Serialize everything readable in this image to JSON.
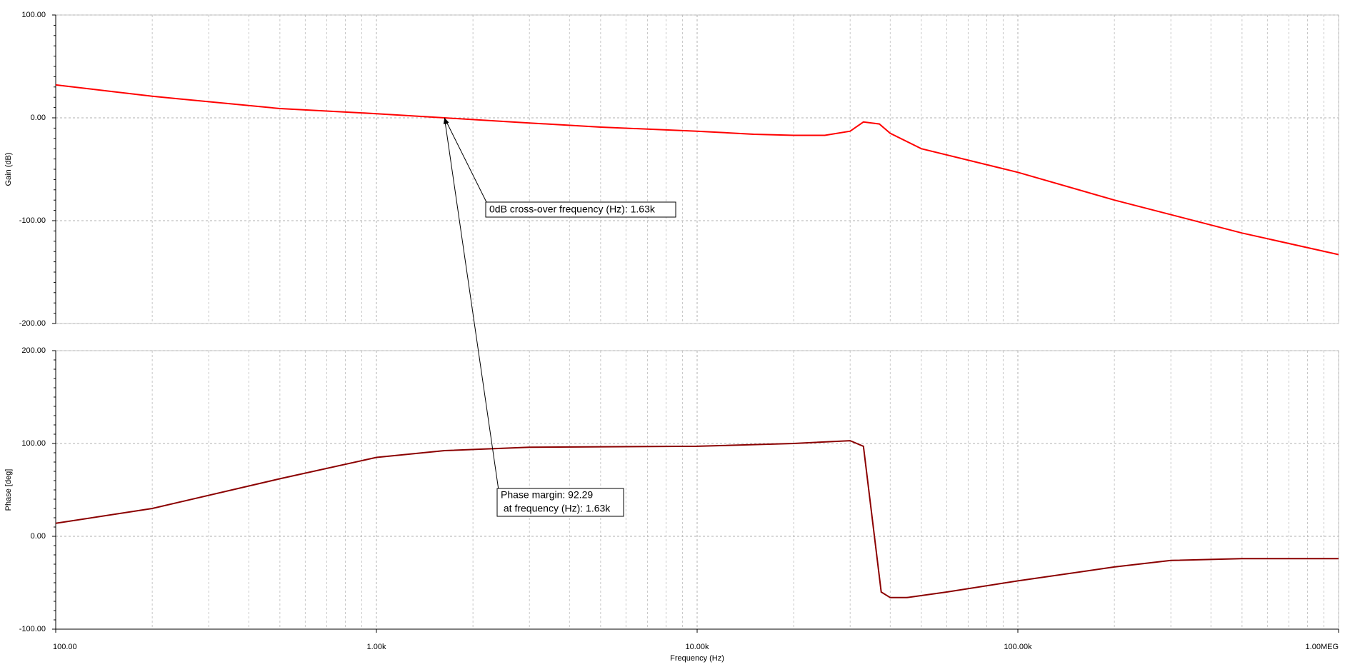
{
  "chart_data": [
    {
      "type": "line",
      "ylabel": "Gain (dB)",
      "color": "#ff0000",
      "log_x": true,
      "grid": true,
      "xlim": [
        100,
        1000000
      ],
      "ylim": [
        -200,
        100
      ],
      "yticks": [
        {
          "value": -200,
          "label": "-200.00"
        },
        {
          "value": -100,
          "label": "-100.00"
        },
        {
          "value": 0,
          "label": "0.00"
        },
        {
          "value": 100,
          "label": "100.00"
        }
      ],
      "x": [
        100,
        200,
        500,
        1000,
        1630,
        3000,
        5000,
        10000,
        15000,
        20000,
        25000,
        30000,
        33000,
        37000,
        40000,
        50000,
        100000,
        200000,
        500000,
        1000000
      ],
      "values": [
        32,
        21,
        9,
        4,
        0,
        -5,
        -9,
        -13,
        -16,
        -17,
        -17,
        -13,
        -4,
        -6,
        -15,
        -30,
        -53,
        -80,
        -112,
        -133
      ],
      "annotation": {
        "text": "0dB cross-over frequency (Hz): 1.63k",
        "x": 1630,
        "y": 0
      }
    },
    {
      "type": "line",
      "ylabel": "Phase [deg]",
      "xlabel": "Frequency (Hz)",
      "color": "#8b0000",
      "log_x": true,
      "grid": true,
      "xlim": [
        100,
        1000000
      ],
      "xticks": [
        {
          "value": 100,
          "label": "100.00"
        },
        {
          "value": 1000,
          "label": "1.00k"
        },
        {
          "value": 10000,
          "label": "10.00k"
        },
        {
          "value": 100000,
          "label": "100.00k"
        },
        {
          "value": 1000000,
          "label": "1.00MEG"
        }
      ],
      "ylim": [
        -100,
        200
      ],
      "yticks": [
        {
          "value": -100,
          "label": "-100.00"
        },
        {
          "value": 0,
          "label": "0.00"
        },
        {
          "value": 100,
          "label": "100.00"
        },
        {
          "value": 200,
          "label": "200.00"
        }
      ],
      "x": [
        100,
        200,
        500,
        1000,
        1630,
        3000,
        10000,
        20000,
        30000,
        33000,
        37500,
        40000,
        45000,
        60000,
        100000,
        200000,
        300000,
        500000,
        1000000
      ],
      "values": [
        14,
        30,
        62,
        85,
        92.29,
        96,
        97,
        100,
        103,
        97,
        -60,
        -66,
        -66,
        -60,
        -48,
        -33,
        -26,
        -24,
        -24
      ],
      "annotation": {
        "lines": [
          "Phase margin: 92.29",
          " at frequency (Hz): 1.63k"
        ]
      }
    }
  ]
}
